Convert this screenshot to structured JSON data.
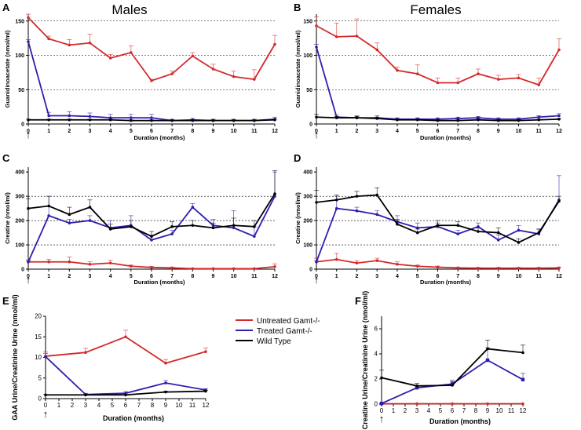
{
  "figure": {
    "column_titles": [
      "Males",
      "Females"
    ],
    "arrow_symbol": "↑",
    "legend": [
      {
        "label": "Untreated Gamt-/-",
        "color": "#d42a2a"
      },
      {
        "label": "Treated Gamt-/-",
        "color": "#2c1fb0"
      },
      {
        "label": "Wild Type",
        "color": "#000000"
      }
    ]
  },
  "chart_data": [
    {
      "panel": "A",
      "type": "line",
      "title": "Males",
      "xlabel": "Duration (months)",
      "ylabel": "Guanidinoacetate (nmol/ml)",
      "xlim": [
        0,
        12
      ],
      "ylim": [
        0,
        160
      ],
      "xticks": [
        0,
        1,
        2,
        3,
        4,
        5,
        6,
        7,
        8,
        9,
        10,
        11,
        12
      ],
      "yticks": [
        0,
        50,
        100,
        150
      ],
      "gridlines": [
        50,
        100,
        150
      ],
      "series": [
        {
          "name": "Untreated Gamt-/-",
          "color": "#d42a2a",
          "x": [
            0,
            1,
            2,
            3,
            4,
            5,
            6,
            7,
            8,
            9,
            10,
            11,
            12
          ],
          "y": [
            155,
            124,
            115,
            118,
            96,
            104,
            63,
            73,
            99,
            80,
            69,
            65,
            116
          ],
          "err": [
            26,
            4,
            8,
            13,
            5,
            10,
            2,
            4,
            5,
            7,
            8,
            14,
            13
          ]
        },
        {
          "name": "Treated Gamt-/-",
          "color": "#2c1fb0",
          "x": [
            0,
            1,
            2,
            3,
            4,
            5,
            6,
            7,
            8,
            9,
            10,
            11,
            12
          ],
          "y": [
            120,
            12,
            12,
            11,
            9,
            9,
            9,
            5,
            6,
            5,
            5,
            5,
            7
          ],
          "err": [
            3,
            5,
            6,
            5,
            5,
            5,
            5,
            2,
            2,
            2,
            2,
            2,
            3
          ]
        },
        {
          "name": "Wild Type",
          "color": "#000000",
          "x": [
            0,
            1,
            2,
            3,
            4,
            5,
            6,
            7,
            8,
            9,
            10,
            11,
            12
          ],
          "y": [
            6,
            6,
            6,
            6,
            6,
            5,
            5,
            5,
            5,
            5,
            5,
            5,
            6
          ],
          "err": [
            1,
            1,
            1,
            1,
            1,
            1,
            1,
            1,
            1,
            1,
            1,
            1,
            1
          ]
        }
      ]
    },
    {
      "panel": "B",
      "type": "line",
      "title": "Females",
      "xlabel": "Duration (months)",
      "ylabel": "Guanidinoacetate (nmol/ml)",
      "xlim": [
        0,
        12
      ],
      "ylim": [
        0,
        160
      ],
      "xticks": [
        0,
        1,
        2,
        3,
        4,
        5,
        6,
        7,
        8,
        9,
        10,
        11,
        12
      ],
      "yticks": [
        0,
        50,
        100,
        150
      ],
      "gridlines": [
        50,
        100,
        150
      ],
      "series": [
        {
          "name": "Untreated Gamt-/-",
          "color": "#d42a2a",
          "x": [
            0,
            1,
            2,
            3,
            4,
            5,
            6,
            7,
            8,
            9,
            10,
            11,
            12
          ],
          "y": [
            143,
            127,
            128,
            108,
            78,
            73,
            60,
            60,
            73,
            65,
            67,
            57,
            108
          ],
          "err": [
            13,
            20,
            25,
            10,
            5,
            13,
            7,
            7,
            7,
            6,
            5,
            10,
            16
          ]
        },
        {
          "name": "Treated Gamt-/-",
          "color": "#2c1fb0",
          "x": [
            0,
            1,
            2,
            3,
            4,
            5,
            6,
            7,
            8,
            9,
            10,
            11,
            12
          ],
          "y": [
            112,
            10,
            9,
            9,
            7,
            7,
            7,
            8,
            9,
            7,
            7,
            10,
            12
          ],
          "err": [
            4,
            3,
            3,
            3,
            2,
            2,
            2,
            2,
            2,
            2,
            2,
            2,
            3
          ]
        },
        {
          "name": "Wild Type",
          "color": "#000000",
          "x": [
            0,
            1,
            2,
            3,
            4,
            5,
            6,
            7,
            8,
            9,
            10,
            11,
            12
          ],
          "y": [
            10,
            9,
            9,
            8,
            6,
            6,
            5,
            5,
            6,
            5,
            5,
            6,
            7
          ],
          "err": [
            4,
            2,
            2,
            2,
            1,
            1,
            1,
            1,
            1,
            1,
            1,
            1,
            1
          ]
        }
      ]
    },
    {
      "panel": "C",
      "type": "line",
      "xlabel": "Duration (months)",
      "ylabel": "Creatine (nmol/ml)",
      "xlim": [
        0,
        12
      ],
      "ylim": [
        0,
        420
      ],
      "xticks": [
        0,
        1,
        2,
        3,
        4,
        5,
        6,
        7,
        8,
        9,
        10,
        11,
        12
      ],
      "yticks": [
        0,
        100,
        200,
        300,
        400
      ],
      "gridlines": [
        100,
        200,
        300
      ],
      "series": [
        {
          "name": "Untreated Gamt-/-",
          "color": "#d42a2a",
          "x": [
            0,
            1,
            2,
            3,
            4,
            5,
            6,
            7,
            8,
            9,
            10,
            11,
            12
          ],
          "y": [
            30,
            30,
            30,
            20,
            25,
            12,
            7,
            5,
            2,
            2,
            2,
            2,
            10
          ],
          "err": [
            8,
            10,
            20,
            10,
            12,
            5,
            4,
            3,
            2,
            2,
            2,
            2,
            12
          ]
        },
        {
          "name": "Treated Gamt-/-",
          "color": "#2c1fb0",
          "x": [
            0,
            1,
            2,
            3,
            4,
            5,
            6,
            7,
            8,
            9,
            10,
            11,
            12
          ],
          "y": [
            30,
            220,
            190,
            200,
            170,
            180,
            120,
            145,
            255,
            180,
            170,
            135,
            300
          ],
          "err": [
            5,
            80,
            15,
            20,
            30,
            40,
            20,
            15,
            15,
            25,
            70,
            40,
            100
          ]
        },
        {
          "name": "Wild Type",
          "color": "#000000",
          "x": [
            0,
            1,
            2,
            3,
            4,
            5,
            6,
            7,
            8,
            9,
            10,
            11,
            12
          ],
          "y": [
            250,
            260,
            225,
            255,
            165,
            175,
            135,
            175,
            180,
            170,
            180,
            175,
            310
          ],
          "err": [
            40,
            40,
            30,
            30,
            20,
            25,
            20,
            20,
            20,
            20,
            30,
            25,
            95
          ]
        }
      ]
    },
    {
      "panel": "D",
      "type": "line",
      "xlabel": "Duration (months)",
      "ylabel": "Creatine (nmol/ml)",
      "xlim": [
        0,
        12
      ],
      "ylim": [
        0,
        420
      ],
      "xticks": [
        0,
        1,
        2,
        3,
        4,
        5,
        6,
        7,
        8,
        9,
        10,
        11,
        12
      ],
      "yticks": [
        0,
        100,
        200,
        300,
        400
      ],
      "gridlines": [
        100,
        200,
        300
      ],
      "series": [
        {
          "name": "Untreated Gamt-/-",
          "color": "#d42a2a",
          "x": [
            0,
            1,
            2,
            3,
            4,
            5,
            6,
            7,
            8,
            9,
            10,
            11,
            12
          ],
          "y": [
            30,
            40,
            25,
            35,
            20,
            12,
            8,
            5,
            4,
            4,
            4,
            4,
            5
          ],
          "err": [
            15,
            25,
            10,
            10,
            10,
            5,
            5,
            3,
            3,
            3,
            3,
            3,
            3
          ]
        },
        {
          "name": "Treated Gamt-/-",
          "color": "#2c1fb0",
          "x": [
            0,
            1,
            2,
            3,
            4,
            5,
            6,
            7,
            8,
            9,
            10,
            11,
            12
          ],
          "y": [
            30,
            250,
            240,
            225,
            195,
            170,
            175,
            145,
            175,
            120,
            160,
            145,
            285
          ],
          "err": [
            5,
            50,
            15,
            15,
            25,
            20,
            15,
            15,
            15,
            20,
            20,
            20,
            100
          ]
        },
        {
          "name": "Wild Type",
          "color": "#000000",
          "x": [
            0,
            1,
            2,
            3,
            4,
            5,
            6,
            7,
            8,
            9,
            10,
            11,
            12
          ],
          "y": [
            275,
            285,
            300,
            305,
            185,
            150,
            180,
            180,
            155,
            150,
            110,
            150,
            280
          ],
          "err": [
            50,
            20,
            20,
            30,
            20,
            15,
            20,
            15,
            15,
            20,
            15,
            15,
            20
          ]
        }
      ]
    },
    {
      "panel": "E",
      "type": "line",
      "xlabel": "Duration (months)",
      "ylabel": "GAA Urine/Creatinine Urine (nmol/ml)",
      "xlim": [
        0,
        12
      ],
      "ylim": [
        0,
        20
      ],
      "xticks": [
        0,
        1,
        2,
        3,
        4,
        5,
        6,
        7,
        8,
        9,
        10,
        11,
        12
      ],
      "yticks": [
        0,
        5,
        10,
        15,
        20
      ],
      "series": [
        {
          "name": "Untreated Gamt-/-",
          "color": "#d42a2a",
          "x": [
            0,
            3,
            6,
            9,
            12
          ],
          "y": [
            10.3,
            11.2,
            15.0,
            8.6,
            11.4
          ],
          "err": [
            1.0,
            1.0,
            1.6,
            0.9,
            0.9
          ]
        },
        {
          "name": "Treated Gamt-/-",
          "color": "#2c1fb0",
          "x": [
            0,
            3,
            6,
            9,
            12
          ],
          "y": [
            10.2,
            1.0,
            1.3,
            3.8,
            2.1
          ],
          "err": [
            0.8,
            0.3,
            0.4,
            0.6,
            0.3
          ]
        },
        {
          "name": "Wild Type",
          "color": "#000000",
          "x": [
            0,
            3,
            6,
            9,
            12
          ],
          "y": [
            0.9,
            0.9,
            0.9,
            1.6,
            1.8
          ],
          "err": [
            0.1,
            0.1,
            0.1,
            0.2,
            0.2
          ]
        }
      ]
    },
    {
      "panel": "F",
      "type": "line",
      "xlabel": "Duration (months)",
      "ylabel": "Creatine Urine/Creatinine Urine (nmol/ml)",
      "xlim": [
        0,
        12
      ],
      "ylim": [
        0,
        7
      ],
      "xticks": [
        0,
        1,
        2,
        3,
        4,
        5,
        6,
        7,
        8,
        9,
        10,
        11,
        12
      ],
      "yticks": [
        0,
        2,
        4,
        6
      ],
      "series": [
        {
          "name": "Untreated Gamt-/-",
          "color": "#d42a2a",
          "x": [
            0,
            3,
            6,
            9,
            12
          ],
          "y": [
            0.03,
            0.03,
            0.03,
            0.03,
            0.03
          ],
          "err": [
            0,
            0,
            0,
            0,
            0
          ]
        },
        {
          "name": "Treated Gamt-/-",
          "color": "#2c1fb0",
          "x": [
            0,
            3,
            6,
            9,
            12
          ],
          "y": [
            0.05,
            1.3,
            1.6,
            3.5,
            1.95
          ],
          "err": [
            0.05,
            0.2,
            0.3,
            1.0,
            0.5
          ]
        },
        {
          "name": "Wild Type",
          "color": "#000000",
          "x": [
            0,
            3,
            6,
            9,
            12
          ],
          "y": [
            2.1,
            1.45,
            1.5,
            4.4,
            4.1
          ],
          "err": [
            0.6,
            0.2,
            0.3,
            0.7,
            0.6
          ]
        }
      ]
    }
  ]
}
